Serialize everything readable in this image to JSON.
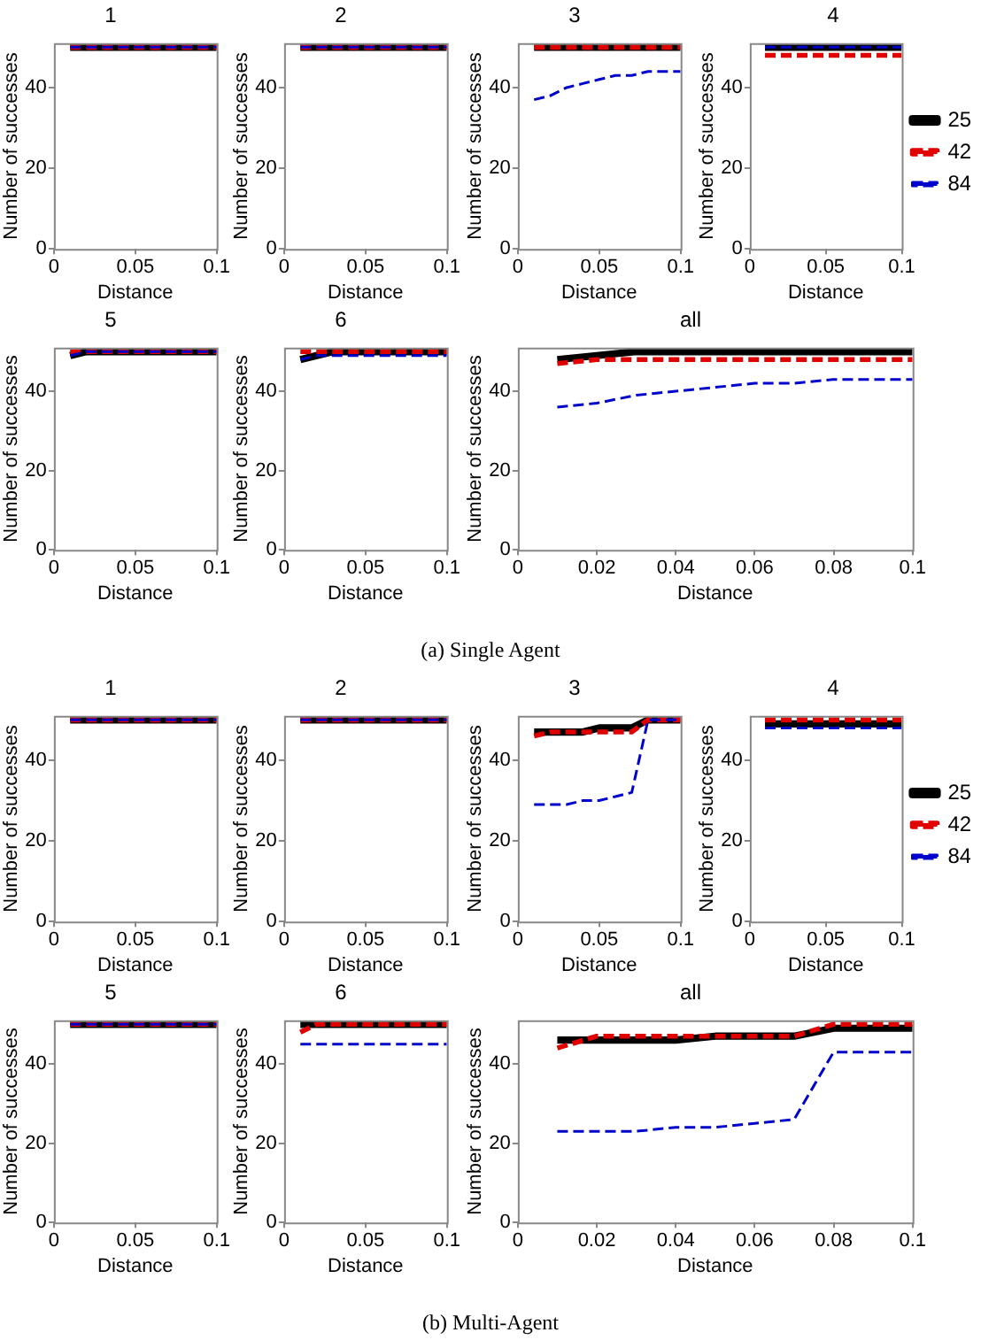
{
  "chart_data": [
    {
      "type": "line",
      "title": "1",
      "xlabel": "Distance",
      "ylabel": "Number of successes",
      "x": [
        0.01,
        0.02,
        0.03,
        0.04,
        0.05,
        0.06,
        0.07,
        0.08,
        0.09,
        0.1
      ],
      "xlim": [
        0,
        0.1
      ],
      "xticks": [
        0,
        0.05,
        0.1
      ],
      "ylim": [
        0,
        51
      ],
      "yticks": [
        0,
        20,
        40
      ],
      "series": [
        {
          "color": "#000000",
          "line_style": "solid",
          "values": [
            50,
            50,
            50,
            50,
            50,
            50,
            50,
            50,
            50,
            50
          ]
        },
        {
          "color": "#e00000",
          "line_style": "dashed",
          "values": [
            50,
            50,
            50,
            50,
            50,
            50,
            50,
            50,
            50,
            50
          ]
        },
        {
          "color": "#0000cc",
          "line_style": "dashed",
          "values": [
            50,
            50,
            50,
            50,
            50,
            50,
            50,
            50,
            50,
            50
          ]
        }
      ]
    },
    {
      "type": "line",
      "title": "2",
      "xlabel": "Distance",
      "ylabel": "Number of successes",
      "x": [
        0.01,
        0.02,
        0.03,
        0.04,
        0.05,
        0.06,
        0.07,
        0.08,
        0.09,
        0.1
      ],
      "xlim": [
        0,
        0.1
      ],
      "xticks": [
        0,
        0.05,
        0.1
      ],
      "ylim": [
        0,
        51
      ],
      "yticks": [
        0,
        20,
        40
      ],
      "series": [
        {
          "color": "#000000",
          "line_style": "solid",
          "values": [
            50,
            50,
            50,
            50,
            50,
            50,
            50,
            50,
            50,
            50
          ]
        },
        {
          "color": "#e00000",
          "line_style": "dashed",
          "values": [
            50,
            50,
            50,
            50,
            50,
            50,
            50,
            50,
            50,
            50
          ]
        },
        {
          "color": "#0000cc",
          "line_style": "dashed",
          "values": [
            50,
            50,
            50,
            50,
            50,
            50,
            50,
            50,
            50,
            50
          ]
        }
      ]
    },
    {
      "type": "line",
      "title": "3",
      "xlabel": "Distance",
      "ylabel": "Number of successes",
      "x": [
        0.01,
        0.02,
        0.03,
        0.04,
        0.05,
        0.06,
        0.07,
        0.08,
        0.09,
        0.1
      ],
      "xlim": [
        0,
        0.1
      ],
      "xticks": [
        0,
        0.05,
        0.1
      ],
      "ylim": [
        0,
        51
      ],
      "yticks": [
        0,
        20,
        40
      ],
      "series": [
        {
          "color": "#000000",
          "line_style": "solid",
          "values": [
            50,
            50,
            50,
            50,
            50,
            50,
            50,
            50,
            50,
            50
          ]
        },
        {
          "color": "#e00000",
          "line_style": "dashed",
          "values": [
            50,
            50,
            50,
            50,
            50,
            50,
            50,
            50,
            50,
            50
          ]
        },
        {
          "color": "#0000cc",
          "line_style": "dashed",
          "values": [
            37,
            38,
            40,
            41,
            42,
            43,
            43,
            44,
            44,
            44
          ]
        }
      ]
    },
    {
      "type": "line",
      "title": "4",
      "xlabel": "Distance",
      "ylabel": "Number of successes",
      "legend": "right",
      "x": [
        0.01,
        0.02,
        0.03,
        0.04,
        0.05,
        0.06,
        0.07,
        0.08,
        0.09,
        0.1
      ],
      "xlim": [
        0,
        0.1
      ],
      "xticks": [
        0,
        0.05,
        0.1
      ],
      "ylim": [
        0,
        51
      ],
      "yticks": [
        0,
        20,
        40
      ],
      "series": [
        {
          "name": "25",
          "color": "#000000",
          "line_style": "solid",
          "values": [
            50,
            50,
            50,
            50,
            50,
            50,
            50,
            50,
            50,
            50
          ]
        },
        {
          "name": "42",
          "color": "#e00000",
          "line_style": "dashed",
          "values": [
            48,
            48,
            48,
            48,
            48,
            48,
            48,
            48,
            48,
            48
          ]
        },
        {
          "name": "84",
          "color": "#0000cc",
          "line_style": "dashed",
          "values": [
            50,
            50,
            50,
            50,
            50,
            50,
            50,
            50,
            50,
            50
          ]
        }
      ]
    },
    {
      "type": "line",
      "title": "5",
      "xlabel": "Distance",
      "ylabel": "Number of successes",
      "x": [
        0.01,
        0.02,
        0.03,
        0.04,
        0.05,
        0.06,
        0.07,
        0.08,
        0.09,
        0.1
      ],
      "xlim": [
        0,
        0.1
      ],
      "xticks": [
        0,
        0.05,
        0.1
      ],
      "ylim": [
        0,
        51
      ],
      "yticks": [
        0,
        20,
        40
      ],
      "series": [
        {
          "color": "#000000",
          "line_style": "solid",
          "values": [
            49,
            50,
            50,
            50,
            50,
            50,
            50,
            50,
            50,
            50
          ]
        },
        {
          "color": "#e00000",
          "line_style": "dashed",
          "values": [
            50,
            50,
            50,
            50,
            50,
            50,
            50,
            50,
            50,
            50
          ]
        },
        {
          "color": "#0000cc",
          "line_style": "dashed",
          "values": [
            49,
            50,
            50,
            50,
            50,
            50,
            50,
            50,
            50,
            50
          ]
        }
      ]
    },
    {
      "type": "line",
      "title": "6",
      "xlabel": "Distance",
      "ylabel": "Number of successes",
      "x": [
        0.01,
        0.02,
        0.03,
        0.04,
        0.05,
        0.06,
        0.07,
        0.08,
        0.09,
        0.1
      ],
      "xlim": [
        0,
        0.1
      ],
      "xticks": [
        0,
        0.05,
        0.1
      ],
      "ylim": [
        0,
        51
      ],
      "yticks": [
        0,
        20,
        40
      ],
      "series": [
        {
          "color": "#000000",
          "line_style": "solid",
          "values": [
            48,
            49,
            50,
            50,
            50,
            50,
            50,
            50,
            50,
            50
          ]
        },
        {
          "color": "#e00000",
          "line_style": "dashed",
          "values": [
            50,
            50,
            50,
            50,
            50,
            50,
            50,
            50,
            50,
            50
          ]
        },
        {
          "color": "#0000cc",
          "line_style": "dashed",
          "values": [
            48,
            49,
            49,
            49,
            49,
            49,
            49,
            49,
            49,
            49
          ]
        }
      ]
    },
    {
      "type": "line",
      "title": "all",
      "xlabel": "Distance",
      "ylabel": "Number of successes",
      "annotations": [
        "(a) Single Agent"
      ],
      "x": [
        0.01,
        0.02,
        0.03,
        0.04,
        0.05,
        0.06,
        0.07,
        0.08,
        0.09,
        0.1
      ],
      "xlim": [
        0,
        0.1
      ],
      "xticks": [
        0,
        0.02,
        0.04,
        0.06,
        0.08,
        0.1
      ],
      "ylim": [
        0,
        51
      ],
      "yticks": [
        0,
        20,
        40
      ],
      "series": [
        {
          "color": "#000000",
          "line_style": "solid",
          "values": [
            48,
            49,
            50,
            50,
            50,
            50,
            50,
            50,
            50,
            50
          ]
        },
        {
          "color": "#e00000",
          "line_style": "dashed",
          "values": [
            47,
            48,
            48,
            48,
            48,
            48,
            48,
            48,
            48,
            48
          ]
        },
        {
          "color": "#0000cc",
          "line_style": "dashed",
          "values": [
            36,
            37,
            39,
            40,
            41,
            42,
            42,
            43,
            43,
            43
          ]
        }
      ]
    },
    {
      "type": "line",
      "title": "1",
      "xlabel": "Distance",
      "ylabel": "Number of successes",
      "x": [
        0.01,
        0.02,
        0.03,
        0.04,
        0.05,
        0.06,
        0.07,
        0.08,
        0.09,
        0.1
      ],
      "xlim": [
        0,
        0.1
      ],
      "xticks": [
        0,
        0.05,
        0.1
      ],
      "ylim": [
        0,
        51
      ],
      "yticks": [
        0,
        20,
        40
      ],
      "series": [
        {
          "color": "#000000",
          "line_style": "solid",
          "values": [
            50,
            50,
            50,
            50,
            50,
            50,
            50,
            50,
            50,
            50
          ]
        },
        {
          "color": "#e00000",
          "line_style": "dashed",
          "values": [
            50,
            50,
            50,
            50,
            50,
            50,
            50,
            50,
            50,
            50
          ]
        },
        {
          "color": "#0000cc",
          "line_style": "dashed",
          "values": [
            50,
            50,
            50,
            50,
            50,
            50,
            50,
            50,
            50,
            50
          ]
        }
      ]
    },
    {
      "type": "line",
      "title": "2",
      "xlabel": "Distance",
      "ylabel": "Number of successes",
      "x": [
        0.01,
        0.02,
        0.03,
        0.04,
        0.05,
        0.06,
        0.07,
        0.08,
        0.09,
        0.1
      ],
      "xlim": [
        0,
        0.1
      ],
      "xticks": [
        0,
        0.05,
        0.1
      ],
      "ylim": [
        0,
        51
      ],
      "yticks": [
        0,
        20,
        40
      ],
      "series": [
        {
          "color": "#000000",
          "line_style": "solid",
          "values": [
            50,
            50,
            50,
            50,
            50,
            50,
            50,
            50,
            50,
            50
          ]
        },
        {
          "color": "#e00000",
          "line_style": "dashed",
          "values": [
            50,
            50,
            50,
            50,
            50,
            50,
            50,
            50,
            50,
            50
          ]
        },
        {
          "color": "#0000cc",
          "line_style": "dashed",
          "values": [
            50,
            50,
            50,
            50,
            50,
            50,
            50,
            50,
            50,
            50
          ]
        }
      ]
    },
    {
      "type": "line",
      "title": "3",
      "xlabel": "Distance",
      "ylabel": "Number of successes",
      "x": [
        0.01,
        0.02,
        0.03,
        0.04,
        0.05,
        0.06,
        0.07,
        0.08,
        0.09,
        0.1
      ],
      "xlim": [
        0,
        0.1
      ],
      "xticks": [
        0,
        0.05,
        0.1
      ],
      "ylim": [
        0,
        51
      ],
      "yticks": [
        0,
        20,
        40
      ],
      "series": [
        {
          "color": "#000000",
          "line_style": "solid",
          "values": [
            47,
            47,
            47,
            47,
            48,
            48,
            48,
            50,
            50,
            50
          ]
        },
        {
          "color": "#e00000",
          "line_style": "dashed",
          "values": [
            46,
            47,
            47,
            47,
            47,
            47,
            47,
            50,
            50,
            50
          ]
        },
        {
          "color": "#0000cc",
          "line_style": "dashed",
          "values": [
            29,
            29,
            29,
            30,
            30,
            31,
            32,
            50,
            50,
            50
          ]
        }
      ]
    },
    {
      "type": "line",
      "title": "4",
      "xlabel": "Distance",
      "ylabel": "Number of successes",
      "legend": "right",
      "x": [
        0.01,
        0.02,
        0.03,
        0.04,
        0.05,
        0.06,
        0.07,
        0.08,
        0.09,
        0.1
      ],
      "xlim": [
        0,
        0.1
      ],
      "xticks": [
        0,
        0.05,
        0.1
      ],
      "ylim": [
        0,
        51
      ],
      "yticks": [
        0,
        20,
        40
      ],
      "series": [
        {
          "name": "25",
          "color": "#000000",
          "line_style": "solid",
          "values": [
            49,
            49,
            49,
            49,
            49,
            49,
            49,
            49,
            49,
            49
          ]
        },
        {
          "name": "42",
          "color": "#e00000",
          "line_style": "dashed",
          "values": [
            50,
            50,
            50,
            50,
            50,
            50,
            50,
            50,
            50,
            50
          ]
        },
        {
          "name": "84",
          "color": "#0000cc",
          "line_style": "dashed",
          "values": [
            48,
            48,
            48,
            48,
            48,
            48,
            48,
            48,
            48,
            48
          ]
        }
      ]
    },
    {
      "type": "line",
      "title": "5",
      "xlabel": "Distance",
      "ylabel": "Number of successes",
      "x": [
        0.01,
        0.02,
        0.03,
        0.04,
        0.05,
        0.06,
        0.07,
        0.08,
        0.09,
        0.1
      ],
      "xlim": [
        0,
        0.1
      ],
      "xticks": [
        0,
        0.05,
        0.1
      ],
      "ylim": [
        0,
        51
      ],
      "yticks": [
        0,
        20,
        40
      ],
      "series": [
        {
          "color": "#000000",
          "line_style": "solid",
          "values": [
            50,
            50,
            50,
            50,
            50,
            50,
            50,
            50,
            50,
            50
          ]
        },
        {
          "color": "#e00000",
          "line_style": "dashed",
          "values": [
            50,
            50,
            50,
            50,
            50,
            50,
            50,
            50,
            50,
            50
          ]
        },
        {
          "color": "#0000cc",
          "line_style": "dashed",
          "values": [
            50,
            50,
            50,
            50,
            50,
            50,
            50,
            50,
            50,
            50
          ]
        }
      ]
    },
    {
      "type": "line",
      "title": "6",
      "xlabel": "Distance",
      "ylabel": "Number of successes",
      "x": [
        0.01,
        0.02,
        0.03,
        0.04,
        0.05,
        0.06,
        0.07,
        0.08,
        0.09,
        0.1
      ],
      "xlim": [
        0,
        0.1
      ],
      "xticks": [
        0,
        0.05,
        0.1
      ],
      "ylim": [
        0,
        51
      ],
      "yticks": [
        0,
        20,
        40
      ],
      "series": [
        {
          "color": "#000000",
          "line_style": "solid",
          "values": [
            50,
            50,
            50,
            50,
            50,
            50,
            50,
            50,
            50,
            50
          ]
        },
        {
          "color": "#e00000",
          "line_style": "dashed",
          "values": [
            48,
            50,
            50,
            50,
            50,
            50,
            50,
            50,
            50,
            50
          ]
        },
        {
          "color": "#0000cc",
          "line_style": "dashed",
          "values": [
            45,
            45,
            45,
            45,
            45,
            45,
            45,
            45,
            45,
            45
          ]
        }
      ]
    },
    {
      "type": "line",
      "title": "all",
      "xlabel": "Distance",
      "ylabel": "Number of successes",
      "annotations": [
        "(b) Multi-Agent"
      ],
      "x": [
        0.01,
        0.02,
        0.03,
        0.04,
        0.05,
        0.06,
        0.07,
        0.08,
        0.09,
        0.1
      ],
      "xlim": [
        0,
        0.1
      ],
      "xticks": [
        0,
        0.02,
        0.04,
        0.06,
        0.08,
        0.1
      ],
      "ylim": [
        0,
        51
      ],
      "yticks": [
        0,
        20,
        40
      ],
      "series": [
        {
          "color": "#000000",
          "line_style": "solid",
          "values": [
            46,
            46,
            46,
            46,
            47,
            47,
            47,
            49,
            49,
            49
          ]
        },
        {
          "color": "#e00000",
          "line_style": "dashed",
          "values": [
            44,
            47,
            47,
            47,
            47,
            47,
            47,
            50,
            50,
            50
          ]
        },
        {
          "color": "#0000cc",
          "line_style": "dashed",
          "values": [
            23,
            23,
            23,
            24,
            24,
            25,
            26,
            43,
            43,
            43
          ]
        }
      ]
    }
  ]
}
